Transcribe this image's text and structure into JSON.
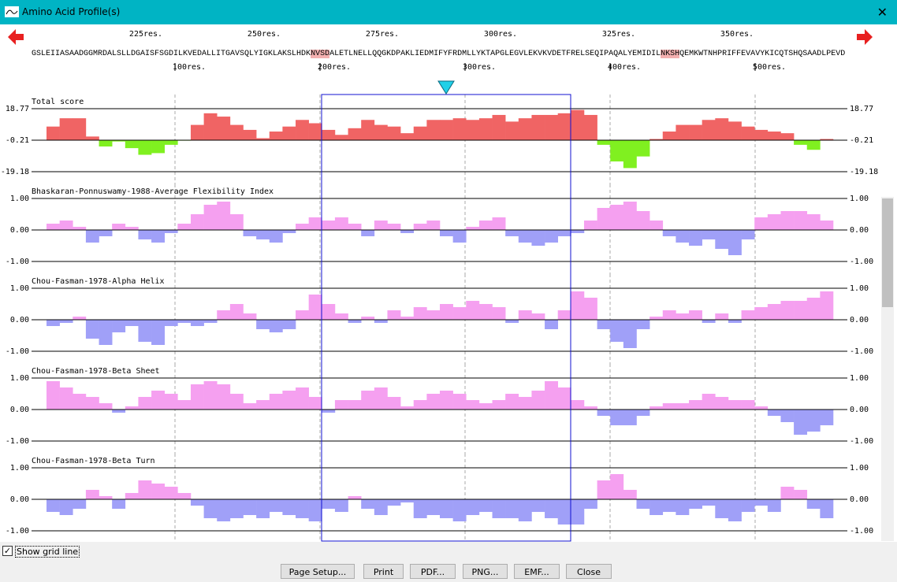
{
  "window": {
    "title": "Amino Acid Profile(s)"
  },
  "sequence": {
    "top_ruler": [
      "225res.",
      "250res.",
      "275res.",
      "300res.",
      "325res.",
      "350res."
    ],
    "segments": [
      {
        "text": "GSLEIIASAADGGMRDALSLLDGAISFSGDILKVEDALLITGAVSQLYIGKLAKSLHDK",
        "highlight": false
      },
      {
        "text": "NVSD",
        "highlight": true
      },
      {
        "text": "ALETLNELLQQGKDPAKLIEDMIFYFRDMLLYKTAPGLEGVLEKVKVDETFRELSEQIPAQALYEMIDIL",
        "highlight": false
      },
      {
        "text": "NKSH",
        "highlight": true
      },
      {
        "text": "QEMKWTNHPRIFFEVAVYKICQTSHQSAADLPEVD",
        "highlight": false
      }
    ],
    "bottom_ruler": [
      "100res.",
      "200res.",
      "300res.",
      "400res.",
      "500res."
    ]
  },
  "chart_data": [
    {
      "type": "bar",
      "title": "Total score",
      "ylim": [
        -19.18,
        18.77
      ],
      "yticks": [
        18.77,
        -0.21,
        -19.18
      ],
      "color": "#f06464",
      "negative_color": "#80f020",
      "values": [
        8,
        13,
        13,
        2,
        -4,
        -1,
        -5,
        -9,
        -8,
        -3,
        -0.5,
        9,
        16,
        14,
        9,
        6,
        1,
        5,
        8,
        12,
        10,
        6,
        3,
        7,
        12,
        9,
        8,
        4,
        8,
        12,
        12,
        13,
        12,
        13,
        15,
        11,
        13,
        15,
        15,
        16,
        18,
        15,
        -3,
        -13,
        -17,
        -10,
        0.5,
        5,
        9,
        9,
        12,
        13,
        11,
        8,
        6,
        5,
        4,
        -3,
        -6,
        0.5
      ]
    },
    {
      "type": "bar",
      "title": "Bhaskaran-Ponnuswamy-1988-Average Flexibility Index",
      "ylim": [
        -1,
        1
      ],
      "yticks": [
        {
          "value": 1,
          "label": "1.00"
        },
        {
          "value": 0,
          "label": "0.00"
        },
        {
          "value": -1,
          "label": "-1.00"
        }
      ],
      "color": "#f5a0f0",
      "negative_color": "#a0a0f8",
      "values": [
        0.2,
        0.3,
        0.1,
        -0.4,
        -0.2,
        0.2,
        0.1,
        -0.3,
        -0.4,
        -0.1,
        0.2,
        0.5,
        0.8,
        0.9,
        0.5,
        -0.2,
        -0.3,
        -0.4,
        -0.1,
        0.2,
        0.4,
        0.3,
        0.4,
        0.2,
        -0.2,
        0.3,
        0.2,
        -0.1,
        0.2,
        0.3,
        -0.2,
        -0.4,
        0.1,
        0.3,
        0.4,
        -0.2,
        -0.4,
        -0.5,
        -0.4,
        -0.2,
        -0.1,
        0.3,
        0.7,
        0.8,
        0.9,
        0.6,
        0.3,
        -0.2,
        -0.4,
        -0.5,
        -0.3,
        -0.6,
        -0.8,
        -0.3,
        0.4,
        0.5,
        0.6,
        0.6,
        0.5,
        0.3
      ]
    },
    {
      "type": "bar",
      "title": "Chou-Fasman-1978-Alpha Helix",
      "ylim": [
        -1,
        1
      ],
      "yticks": [
        {
          "value": 1,
          "label": "1.00"
        },
        {
          "value": 0,
          "label": "0.00"
        },
        {
          "value": -1,
          "label": "-1.00"
        }
      ],
      "color": "#f5a0f0",
      "negative_color": "#a0a0f8",
      "values": [
        -0.2,
        -0.1,
        0.1,
        -0.6,
        -0.8,
        -0.4,
        -0.2,
        -0.7,
        -0.8,
        -0.2,
        -0.1,
        -0.2,
        -0.1,
        0.3,
        0.5,
        0.2,
        -0.3,
        -0.4,
        -0.3,
        0.3,
        0.8,
        0.5,
        0.2,
        -0.1,
        0.1,
        -0.1,
        0.3,
        0.1,
        0.4,
        0.3,
        0.5,
        0.4,
        0.6,
        0.5,
        0.4,
        -0.1,
        0.3,
        0.2,
        -0.3,
        0.3,
        0.9,
        0.7,
        -0.3,
        -0.7,
        -0.9,
        -0.3,
        0.1,
        0.3,
        0.2,
        0.3,
        -0.1,
        0.2,
        -0.1,
        0.3,
        0.4,
        0.5,
        0.6,
        0.6,
        0.7,
        0.9
      ]
    },
    {
      "type": "bar",
      "title": "Chou-Fasman-1978-Beta Sheet",
      "ylim": [
        -1,
        1
      ],
      "yticks": [
        {
          "value": 1,
          "label": "1.00"
        },
        {
          "value": 0,
          "label": "0.00"
        },
        {
          "value": -1,
          "label": "-1.00"
        }
      ],
      "color": "#f5a0f0",
      "negative_color": "#a0a0f8",
      "values": [
        0.9,
        0.7,
        0.5,
        0.4,
        0.2,
        -0.1,
        0.1,
        0.4,
        0.6,
        0.5,
        0.3,
        0.8,
        0.9,
        0.8,
        0.5,
        0.2,
        0.3,
        0.5,
        0.6,
        0.7,
        0.4,
        -0.1,
        0.3,
        0.3,
        0.6,
        0.7,
        0.4,
        0.1,
        0.3,
        0.5,
        0.6,
        0.5,
        0.3,
        0.2,
        0.3,
        0.5,
        0.4,
        0.6,
        0.9,
        0.7,
        0.3,
        0.1,
        -0.2,
        -0.5,
        -0.5,
        -0.2,
        0.1,
        0.2,
        0.2,
        0.3,
        0.5,
        0.4,
        0.3,
        0.3,
        0.1,
        -0.2,
        -0.4,
        -0.8,
        -0.7,
        -0.5
      ]
    },
    {
      "type": "bar",
      "title": "Chou-Fasman-1978-Beta Turn",
      "ylim": [
        -1,
        1
      ],
      "yticks": [
        {
          "value": 1,
          "label": "1.00"
        },
        {
          "value": 0,
          "label": "0.00"
        },
        {
          "value": -1,
          "label": "-1.00"
        }
      ],
      "color": "#f5a0f0",
      "negative_color": "#a0a0f8",
      "values": [
        -0.4,
        -0.5,
        -0.3,
        0.3,
        0.1,
        -0.3,
        0.2,
        0.6,
        0.5,
        0.4,
        0.2,
        -0.2,
        -0.6,
        -0.7,
        -0.6,
        -0.5,
        -0.6,
        -0.4,
        -0.5,
        -0.6,
        -0.7,
        -0.3,
        -0.4,
        0.1,
        -0.3,
        -0.5,
        -0.2,
        -0.1,
        -0.6,
        -0.5,
        -0.6,
        -0.7,
        -0.5,
        -0.4,
        -0.6,
        -0.6,
        -0.7,
        -0.4,
        -0.6,
        -0.8,
        -0.8,
        -0.3,
        0.6,
        0.8,
        0.3,
        -0.3,
        -0.5,
        -0.4,
        -0.5,
        -0.3,
        -0.2,
        -0.6,
        -0.7,
        -0.4,
        -0.2,
        -0.4,
        0.4,
        0.3,
        -0.3,
        -0.6
      ]
    }
  ],
  "controls": {
    "checkbox": {
      "label": "Show grid line",
      "checked": true
    },
    "buttons": [
      "Page Setup...",
      "Print",
      "PDF...",
      "PNG...",
      "EMF...",
      "Close"
    ]
  }
}
